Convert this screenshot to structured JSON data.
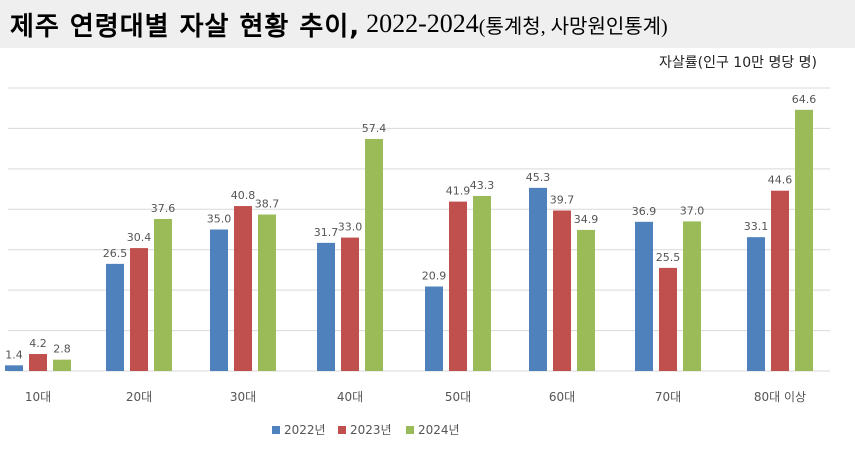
{
  "title": {
    "main": "제주 연령대별 자살 현황 추이,",
    "years": "2022-2024",
    "source": "(통계청, 사망원인통계)"
  },
  "chart_data": {
    "type": "bar",
    "title": "제주 연령대별 자살 현황 추이, 2022-2024(통계청, 사망원인통계)",
    "ylabel": "자살률(인구 10만 명당 명)",
    "xlabel": "",
    "ylim": [
      0,
      70
    ],
    "grid": true,
    "legend": "bottom",
    "categories": [
      "10대",
      "20대",
      "30대",
      "40대",
      "50대",
      "60대",
      "70대",
      "80대 이상"
    ],
    "series": [
      {
        "name": "2022년",
        "color": "#4f81bd",
        "values": [
          1.4,
          26.5,
          35.0,
          31.7,
          20.9,
          45.3,
          36.9,
          33.1
        ]
      },
      {
        "name": "2023년",
        "color": "#c0504d",
        "values": [
          4.2,
          30.4,
          40.8,
          33.0,
          41.9,
          39.7,
          25.5,
          44.6
        ]
      },
      {
        "name": "2024년",
        "color": "#9bbb59",
        "values": [
          2.8,
          37.6,
          38.7,
          57.4,
          43.3,
          34.9,
          37.0,
          64.6
        ]
      }
    ]
  }
}
